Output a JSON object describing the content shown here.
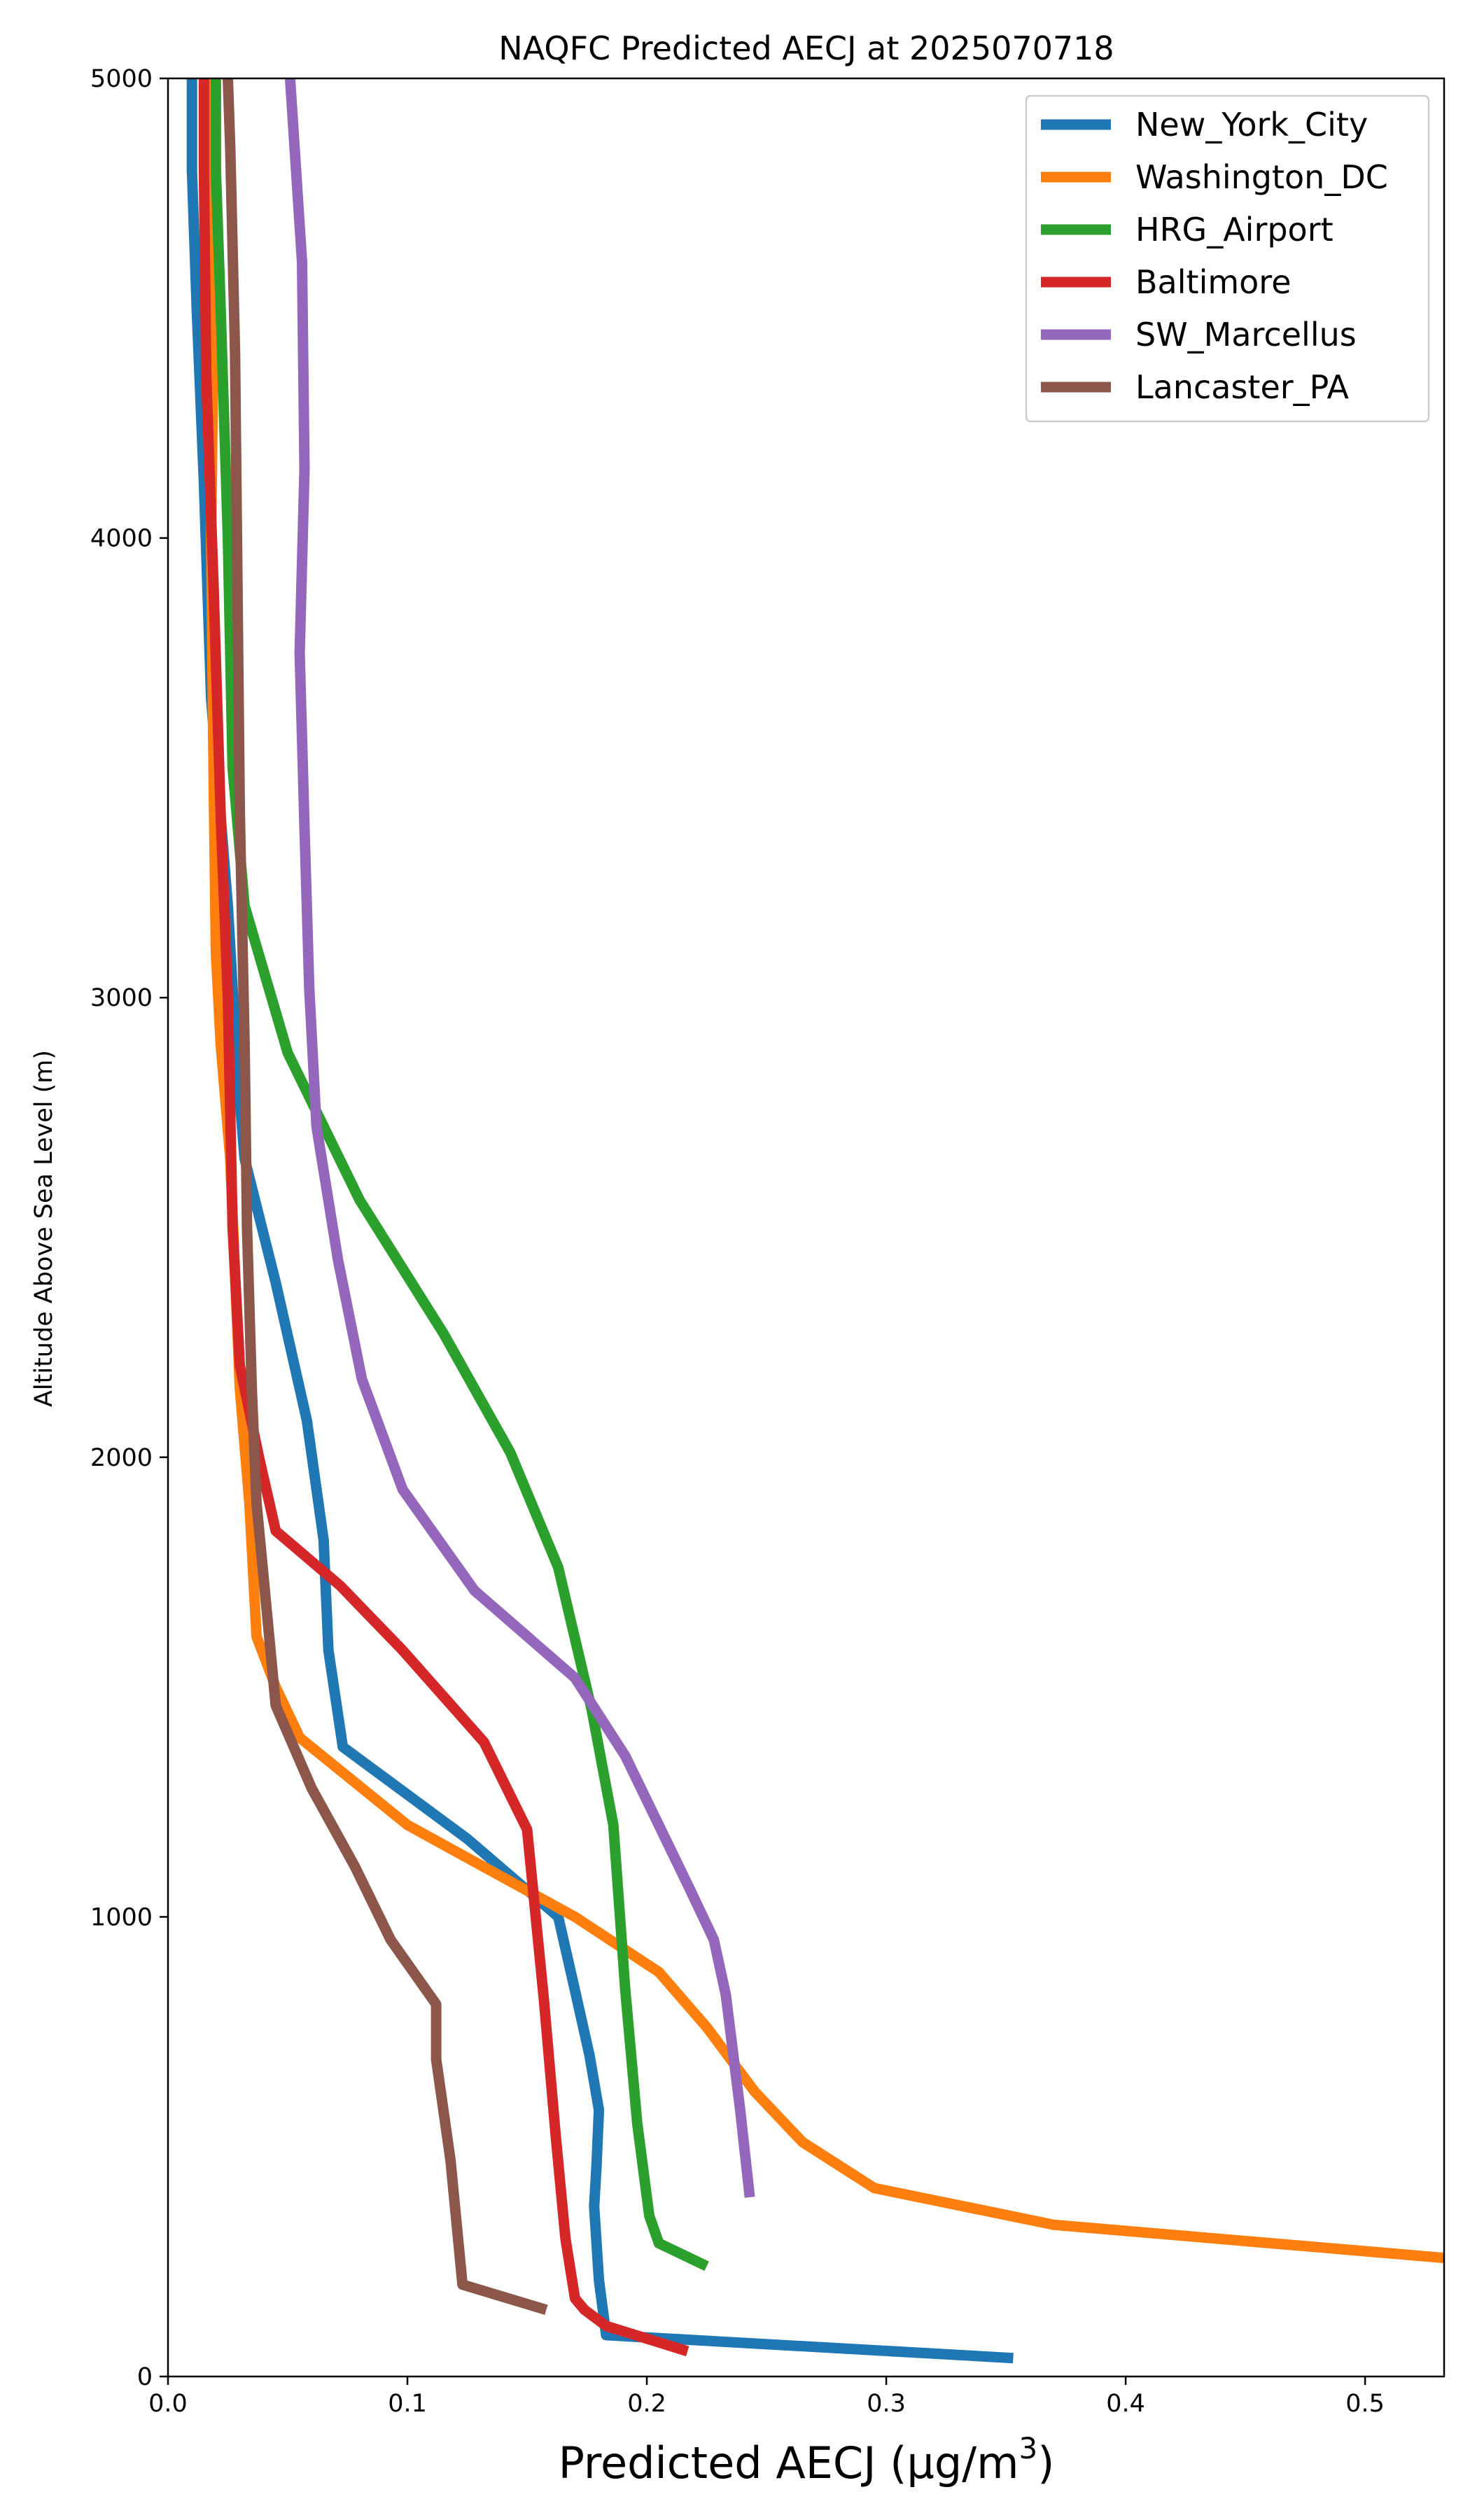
{
  "chart_data": {
    "type": "line",
    "title": "NAQFC Predicted AECJ at 2025070718",
    "xlabel": "Predicted AECJ (",
    "xlabel_unit": "μg/m",
    "xlabel_sup": "3",
    "xlabel_end": ")",
    "ylabel": "Altitude Above Sea Level (m)",
    "xlim": [
      0,
      0.533
    ],
    "ylim": [
      0,
      5000
    ],
    "xticks": [
      0.0,
      0.1,
      0.2,
      0.3,
      0.4,
      0.5
    ],
    "xtick_labels": [
      "0.0",
      "0.1",
      "0.2",
      "0.3",
      "0.4",
      "0.5"
    ],
    "yticks": [
      0,
      1000,
      2000,
      3000,
      4000,
      5000
    ],
    "ytick_labels": [
      "0",
      "1000",
      "2000",
      "3000",
      "4000",
      "5000"
    ],
    "grid": false,
    "legend_position": "top-right",
    "series": [
      {
        "name": "New_York_City",
        "color": "#1f77b4",
        "points": [
          [
            0.353,
            40
          ],
          [
            0.183,
            90
          ],
          [
            0.18,
            210
          ],
          [
            0.178,
            370
          ],
          [
            0.179,
            460
          ],
          [
            0.18,
            580
          ],
          [
            0.176,
            700
          ],
          [
            0.17,
            840
          ],
          [
            0.163,
            1000
          ],
          [
            0.125,
            1170
          ],
          [
            0.073,
            1370
          ],
          [
            0.067,
            1580
          ],
          [
            0.065,
            1820
          ],
          [
            0.058,
            2080
          ],
          [
            0.045,
            2380
          ],
          [
            0.032,
            2650
          ],
          [
            0.029,
            2840
          ],
          [
            0.025,
            3200
          ],
          [
            0.018,
            3650
          ],
          [
            0.015,
            4120
          ],
          [
            0.012,
            4500
          ],
          [
            0.01,
            4800
          ],
          [
            0.01,
            5000
          ]
        ]
      },
      {
        "name": "Washington_DC",
        "color": "#ff7f0e",
        "points": [
          [
            0.533,
            258
          ],
          [
            0.37,
            330
          ],
          [
            0.295,
            410
          ],
          [
            0.265,
            510
          ],
          [
            0.245,
            620
          ],
          [
            0.225,
            760
          ],
          [
            0.205,
            880
          ],
          [
            0.17,
            1000
          ],
          [
            0.1,
            1200
          ],
          [
            0.055,
            1390
          ],
          [
            0.045,
            1500
          ],
          [
            0.037,
            1610
          ],
          [
            0.034,
            1900
          ],
          [
            0.03,
            2150
          ],
          [
            0.026,
            2650
          ],
          [
            0.022,
            2900
          ],
          [
            0.02,
            3100
          ],
          [
            0.019,
            3500
          ],
          [
            0.018,
            4000
          ],
          [
            0.019,
            4450
          ],
          [
            0.017,
            4800
          ],
          [
            0.016,
            5000
          ]
        ]
      },
      {
        "name": "HRG_Airport",
        "color": "#2ca02c",
        "points": [
          [
            0.225,
            240
          ],
          [
            0.205,
            290
          ],
          [
            0.201,
            350
          ],
          [
            0.196,
            550
          ],
          [
            0.191,
            840
          ],
          [
            0.186,
            1200
          ],
          [
            0.177,
            1450
          ],
          [
            0.163,
            1760
          ],
          [
            0.143,
            2010
          ],
          [
            0.115,
            2270
          ],
          [
            0.08,
            2560
          ],
          [
            0.05,
            2880
          ],
          [
            0.032,
            3200
          ],
          [
            0.027,
            3500
          ],
          [
            0.025,
            4000
          ],
          [
            0.022,
            4500
          ],
          [
            0.02,
            4800
          ],
          [
            0.02,
            5000
          ]
        ]
      },
      {
        "name": "Baltimore",
        "color": "#d62728",
        "points": [
          [
            0.217,
            55
          ],
          [
            0.183,
            110
          ],
          [
            0.174,
            145
          ],
          [
            0.17,
            170
          ],
          [
            0.166,
            300
          ],
          [
            0.162,
            520
          ],
          [
            0.157,
            820
          ],
          [
            0.15,
            1190
          ],
          [
            0.132,
            1380
          ],
          [
            0.098,
            1580
          ],
          [
            0.072,
            1720
          ],
          [
            0.045,
            1840
          ],
          [
            0.038,
            2000
          ],
          [
            0.03,
            2200
          ],
          [
            0.027,
            2500
          ],
          [
            0.025,
            3000
          ],
          [
            0.022,
            3400
          ],
          [
            0.019,
            3900
          ],
          [
            0.016,
            4350
          ],
          [
            0.015,
            4800
          ],
          [
            0.015,
            5000
          ]
        ]
      },
      {
        "name": "SW_Marcellus",
        "color": "#9467bd",
        "points": [
          [
            0.243,
            390
          ],
          [
            0.239,
            580
          ],
          [
            0.233,
            830
          ],
          [
            0.228,
            950
          ],
          [
            0.218,
            1060
          ],
          [
            0.191,
            1350
          ],
          [
            0.17,
            1520
          ],
          [
            0.128,
            1710
          ],
          [
            0.098,
            1930
          ],
          [
            0.081,
            2170
          ],
          [
            0.071,
            2430
          ],
          [
            0.062,
            2720
          ],
          [
            0.059,
            3020
          ],
          [
            0.057,
            3370
          ],
          [
            0.055,
            3750
          ],
          [
            0.057,
            4150
          ],
          [
            0.056,
            4600
          ],
          [
            0.051,
            5000
          ]
        ]
      },
      {
        "name": "Lancaster_PA",
        "color": "#8c564b",
        "points": [
          [
            0.158,
            145
          ],
          [
            0.123,
            200
          ],
          [
            0.118,
            470
          ],
          [
            0.112,
            690
          ],
          [
            0.112,
            810
          ],
          [
            0.093,
            950
          ],
          [
            0.078,
            1110
          ],
          [
            0.06,
            1280
          ],
          [
            0.045,
            1460
          ],
          [
            0.041,
            1680
          ],
          [
            0.037,
            1900
          ],
          [
            0.035,
            2150
          ],
          [
            0.033,
            2500
          ],
          [
            0.032,
            2900
          ],
          [
            0.03,
            3400
          ],
          [
            0.029,
            3900
          ],
          [
            0.028,
            4400
          ],
          [
            0.026,
            4850
          ],
          [
            0.025,
            5000
          ]
        ]
      }
    ]
  }
}
